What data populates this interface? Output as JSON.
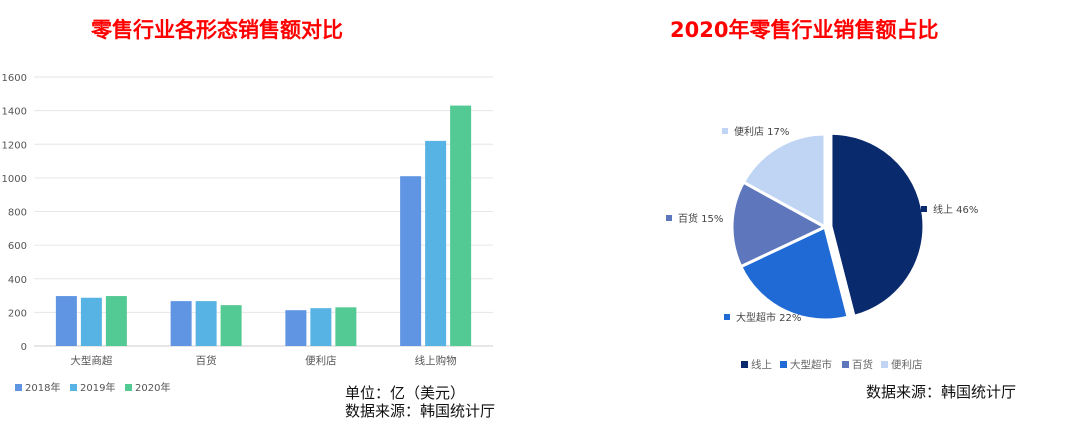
{
  "chart_data": [
    {
      "type": "bar",
      "title": "零售行业各形态销售额对比",
      "categories": [
        "大型商超",
        "百货",
        "便利店",
        "线上购物"
      ],
      "series": [
        {
          "name": "2018年",
          "color": "#5f95e3",
          "values": [
            297,
            267,
            213,
            1010
          ]
        },
        {
          "name": "2019年",
          "color": "#57b3e3",
          "values": [
            287,
            267,
            225,
            1220
          ]
        },
        {
          "name": "2020年",
          "color": "#53c993",
          "values": [
            297,
            243,
            230,
            1430
          ]
        }
      ],
      "ylim": [
        0,
        1600
      ],
      "yticks": [
        0,
        200,
        400,
        600,
        800,
        1000,
        1200,
        1400,
        1600
      ],
      "grid": true,
      "legend": "bottom-left",
      "notes": [
        "单位：亿（美元）",
        "数据来源：韩国统计厅"
      ]
    },
    {
      "type": "pie",
      "title": "2020年零售行业销售额占比",
      "slices": [
        {
          "label": "线上",
          "value": 46,
          "color": "#0a2a6e",
          "data_label": "线上 46%"
        },
        {
          "label": "大型超市",
          "value": 22,
          "color": "#1f6ad4",
          "data_label": "大型超市 22%"
        },
        {
          "label": "百货",
          "value": 15,
          "color": "#5e76bb",
          "data_label": "百货 15%"
        },
        {
          "label": "便利店",
          "value": 17,
          "color": "#c0d5f3",
          "data_label": "便利店 17%"
        }
      ],
      "legend": "bottom",
      "notes": [
        "数据来源：韩国统计厅"
      ]
    }
  ]
}
